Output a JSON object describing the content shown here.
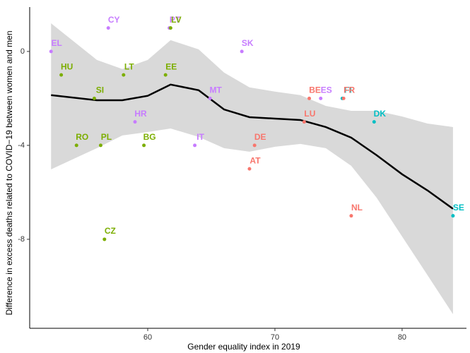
{
  "chart_data": {
    "type": "scatter",
    "x_label": "Gender equality index in 2019",
    "y_label": "Difference in excess deaths related to COVID−19 between women and men",
    "points": {
      "labels": [
        "EL",
        "CY",
        "PT",
        "LV",
        "SK",
        "HU",
        "LT",
        "EE",
        "SI",
        "MT",
        "BE",
        "ES",
        "FI",
        "FR",
        "HR",
        "LU",
        "DK",
        "RO",
        "PL",
        "BG",
        "IT",
        "DE",
        "AT",
        "NL",
        "SE",
        "CZ"
      ],
      "x": [
        52.4,
        56.9,
        61.7,
        61.8,
        67.4,
        53.2,
        58.1,
        61.4,
        55.8,
        64.9,
        72.7,
        73.6,
        75.3,
        75.4,
        59.0,
        72.3,
        77.8,
        54.4,
        56.3,
        59.7,
        63.7,
        68.4,
        68.0,
        76.0,
        84.0,
        56.6
      ],
      "y": [
        0,
        1,
        1,
        1,
        0,
        -1,
        -1,
        -1,
        -2,
        -2,
        -2,
        -2,
        -2,
        -2,
        -3,
        -3,
        -3,
        -4,
        -4,
        -4,
        -4,
        -4,
        -5,
        -7,
        -7,
        -8
      ],
      "colors": [
        "#C77CFF",
        "#C77CFF",
        "#C77CFF",
        "#7CAE00",
        "#C77CFF",
        "#7CAE00",
        "#7CAE00",
        "#7CAE00",
        "#7CAE00",
        "#C77CFF",
        "#F8766D",
        "#C77CFF",
        "#00BFC4",
        "#F8766D",
        "#C77CFF",
        "#F8766D",
        "#00BFC4",
        "#7CAE00",
        "#7CAE00",
        "#7CAE00",
        "#C77CFF",
        "#F8766D",
        "#F8766D",
        "#F8766D",
        "#00BFC4",
        "#7CAE00"
      ]
    },
    "smooth": {
      "x": [
        52.4,
        56,
        58,
        60,
        61.8,
        64,
        66,
        68,
        70,
        72,
        74,
        76,
        78,
        80,
        82,
        84
      ],
      "y": [
        -1.86,
        -2.08,
        -2.08,
        -1.89,
        -1.41,
        -1.65,
        -2.47,
        -2.8,
        -2.86,
        -2.92,
        -3.22,
        -3.67,
        -4.42,
        -5.23,
        -5.92,
        -6.7
      ],
      "upper": [
        1.2,
        -0.36,
        -0.75,
        -0.36,
        0.48,
        0.09,
        -0.9,
        -1.53,
        -1.71,
        -1.86,
        -2.32,
        -2.53,
        -2.53,
        -2.77,
        -3.07,
        -3.22
      ],
      "lower": [
        -5.02,
        -4.12,
        -3.58,
        -3.43,
        -3.28,
        -3.64,
        -4.12,
        -4.27,
        -4.06,
        -3.94,
        -4.12,
        -4.87,
        -6.23,
        -7.88,
        -9.53,
        -11.19
      ],
      "color": "#000000",
      "band_color": "#d9d9d9"
    },
    "xlim": [
      50.72,
      85.06
    ],
    "ylim": [
      -11.79,
      1.89
    ],
    "xticks": [
      60,
      70,
      80
    ],
    "yticks": [
      0,
      -4,
      -8
    ]
  }
}
